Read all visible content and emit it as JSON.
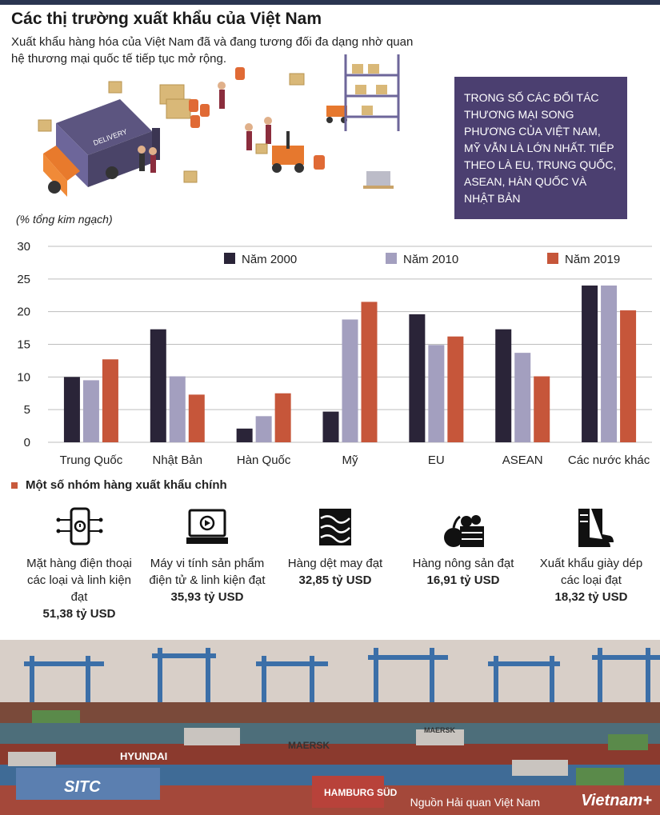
{
  "header": {
    "title": "Các thị trường xuất khẩu của Việt Nam",
    "subtitle": "Xuất khẩu hàng hóa của Việt Nam đã và đang tương đối đa dạng nhờ quan hệ thương mại quốc tế tiếp tục mở rộng."
  },
  "illustration": {
    "truck_label": "DELIVERY"
  },
  "highlight_box": {
    "text": "TRONG SỐ CÁC ĐỐI TÁC THƯƠNG MẠI SONG PHƯƠNG CỦA VIỆT NAM, MỸ VẪN LÀ LỚN NHẤT. TIẾP THEO LÀ EU, TRUNG QUỐC, ASEAN, HÀN QUỐC VÀ NHẬT BẢN"
  },
  "colors": {
    "s2000": "#2a2438",
    "s2010": "#a39fbf",
    "s2019": "#c6563a",
    "highlight_bg": "#4b3f70",
    "grid": "#bdbdbd"
  },
  "chart_data": {
    "type": "bar",
    "title": "",
    "ylabel": "(% tổng kim ngạch)",
    "xlabel": "",
    "ylim": [
      0,
      30
    ],
    "yticks": [
      0,
      5,
      10,
      15,
      20,
      25,
      30
    ],
    "grid": true,
    "legend_position": "top-right",
    "categories": [
      "Trung Quốc",
      "Nhật Bản",
      "Hàn Quốc",
      "Mỹ",
      "EU",
      "ASEAN",
      "Các nước khác"
    ],
    "series": [
      {
        "name": "Năm 2000",
        "values": [
          10.0,
          17.3,
          2.1,
          4.7,
          19.6,
          17.3,
          24.0
        ]
      },
      {
        "name": "Năm 2010",
        "values": [
          9.5,
          10.1,
          4.0,
          18.8,
          14.9,
          13.7,
          24.0
        ]
      },
      {
        "name": "Năm 2019",
        "values": [
          12.7,
          7.3,
          7.5,
          21.5,
          16.2,
          10.1,
          20.2
        ]
      }
    ]
  },
  "goods_section": {
    "heading": "Một số nhóm hàng xuất khẩu chính",
    "items": [
      {
        "icon": "smartphone-icon",
        "label": "Mặt hàng điện thoại các loại và linh kiện đạt",
        "amount": "51,38 tỷ USD"
      },
      {
        "icon": "computer-icon",
        "label": "Máy vi tính sản phẩm điện tử & linh kiện đạt",
        "amount": "35,93 tỷ USD"
      },
      {
        "icon": "textile-icon",
        "label": "Hàng dệt may đạt",
        "amount": "32,85 tỷ USD"
      },
      {
        "icon": "produce-icon",
        "label": "Hàng nông sản đạt",
        "amount": "16,91 tỷ USD"
      },
      {
        "icon": "boot-icon",
        "label": "Xuất khẩu giày dép các loại  đạt",
        "amount": "18,32 tỷ USD"
      }
    ]
  },
  "photo": {
    "container_labels": [
      "HYUNDAI",
      "SITC",
      "MAERSK",
      "HAMBURG SÜD",
      "MAERSK"
    ]
  },
  "footer": {
    "source": "Nguồn Hải quan Việt Nam",
    "brand": "Vietnam+"
  }
}
